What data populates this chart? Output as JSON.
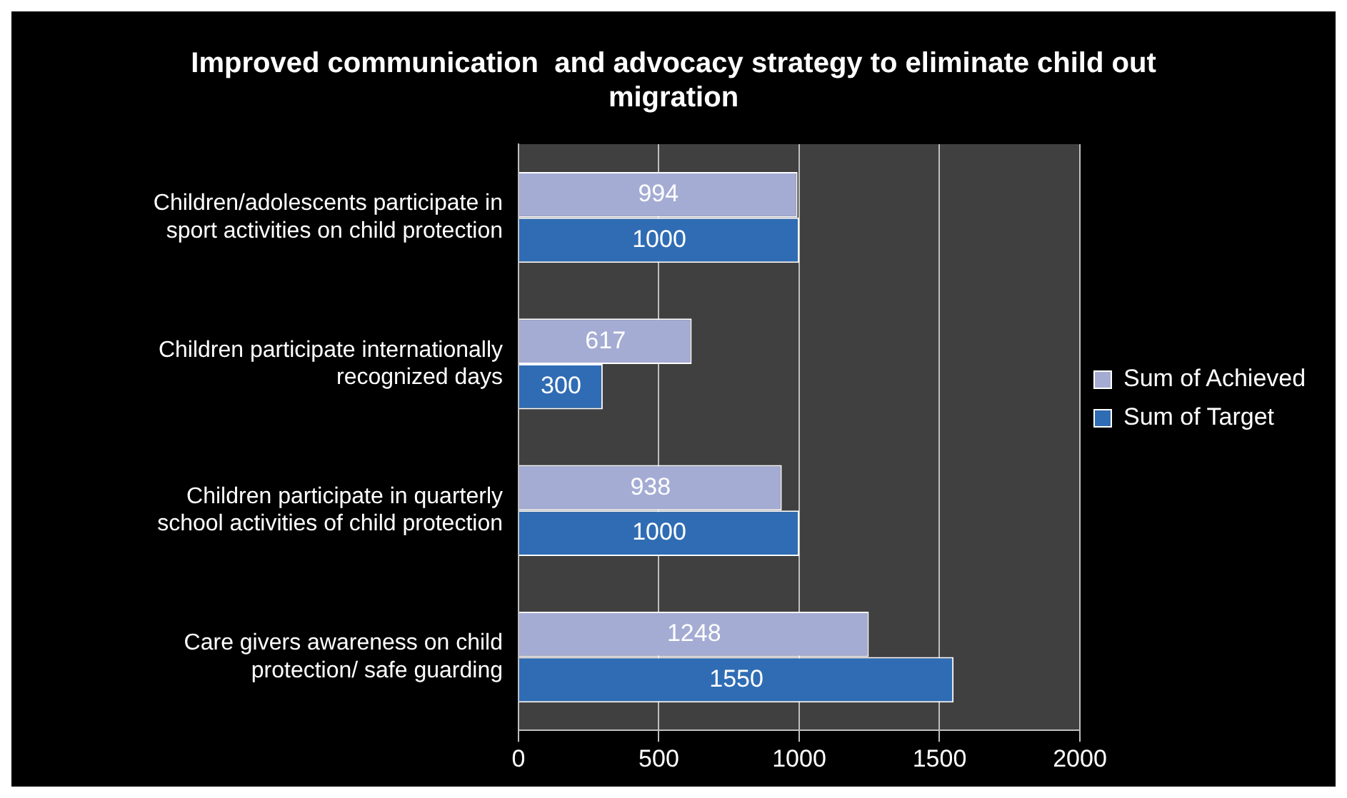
{
  "chart_data": {
    "type": "bar",
    "orientation": "horizontal",
    "title": "Improved communication  and advocacy strategy to eliminate child out migration",
    "categories": [
      "Children/adolescents participate in sport activities on child protection",
      "Children participate internationally recognized days",
      "Children participate in quarterly school activities of child protection",
      "Care givers awareness on child protection/ safe guarding"
    ],
    "series": [
      {
        "name": "Sum of Achieved",
        "color": "#a4acd4",
        "values": [
          994,
          617,
          938,
          1248
        ]
      },
      {
        "name": "Sum of Target",
        "color": "#2f6cb4",
        "values": [
          1000,
          300,
          1000,
          1550
        ]
      }
    ],
    "xlim": [
      0,
      2000
    ],
    "xticks": [
      0,
      500,
      1000,
      1500,
      2000
    ],
    "grid": "x",
    "legend": "right",
    "data_labels": true
  }
}
